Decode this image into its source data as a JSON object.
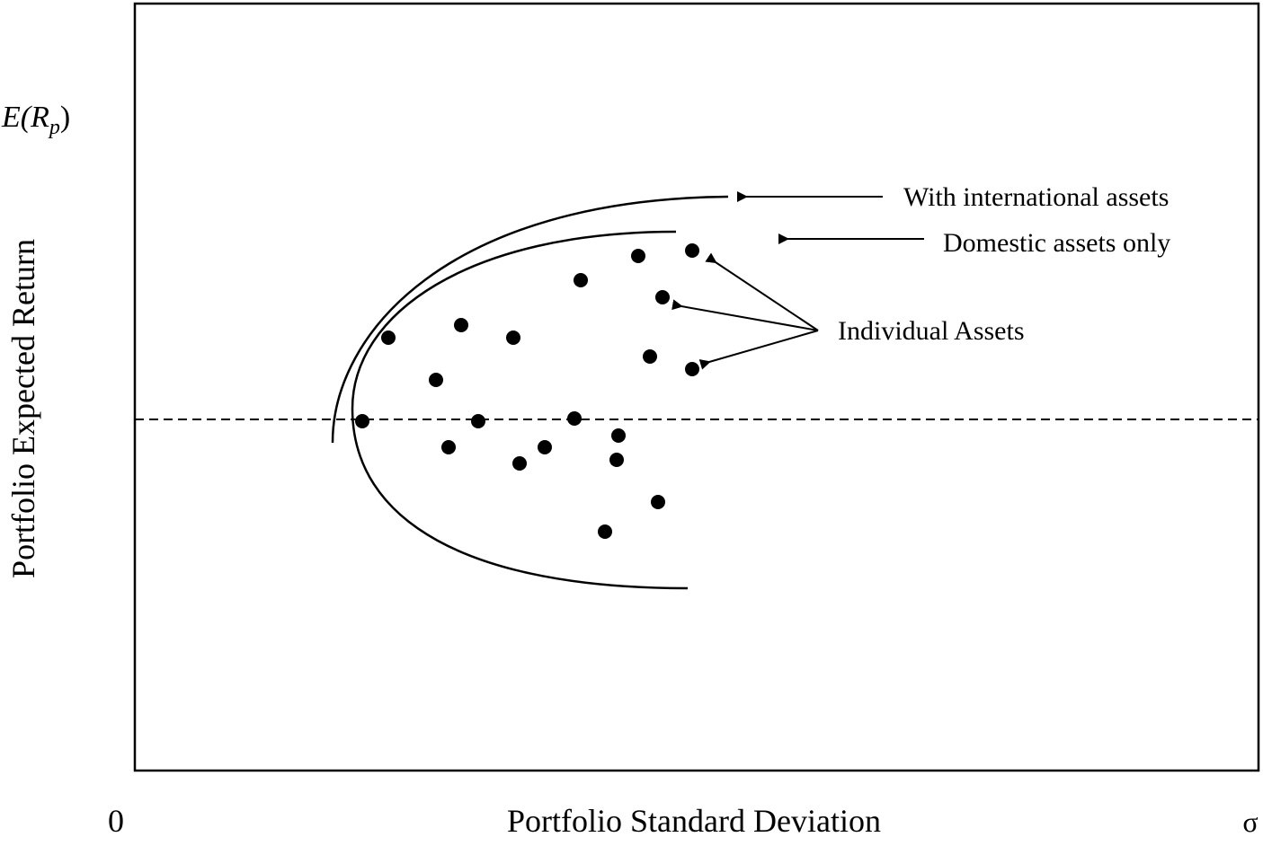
{
  "chart_data": {
    "type": "scatter",
    "title": "",
    "xlabel": "Portfolio Standard Deviation",
    "ylabel": "Portfolio Expected Return",
    "ylabel_symbol": {
      "base": "E(R",
      "subscript": "p",
      "close": ")"
    },
    "x_origin_label": "0",
    "x_end_label": "σ",
    "grid": false,
    "legend": "none",
    "annotations": [
      {
        "id": "intl",
        "text": "With international assets"
      },
      {
        "id": "domestic",
        "text": "Domestic assets only"
      },
      {
        "id": "assets",
        "text": "Individual Assets"
      }
    ],
    "series": [
      {
        "name": "With international assets",
        "kind": "curve",
        "points": [
          [
            6.6,
            1.1
          ],
          [
            6.8,
            1.6
          ],
          [
            7.4,
            2.05
          ],
          [
            8.3,
            2.45
          ],
          [
            9.6,
            2.8
          ],
          [
            11.1,
            3.05
          ],
          [
            13.2,
            3.25
          ],
          [
            15.6,
            3.35
          ]
        ]
      },
      {
        "name": "Domestic assets only",
        "kind": "curve",
        "points": [
          [
            14.4,
            2.85
          ],
          [
            12.5,
            2.78
          ],
          [
            10.5,
            2.55
          ],
          [
            8.8,
            2.15
          ],
          [
            7.8,
            1.6
          ],
          [
            7.3,
            0.95
          ],
          [
            7.4,
            0.35
          ],
          [
            7.9,
            -0.3
          ],
          [
            9.1,
            -1.0
          ],
          [
            11.0,
            -1.55
          ],
          [
            12.8,
            -1.85
          ],
          [
            14.6,
            -2.0
          ]
        ]
      },
      {
        "name": "Individual Assets",
        "kind": "points",
        "points": [
          [
            8.2,
            1.0
          ],
          [
            8.4,
            1.45
          ],
          [
            9.9,
            1.65
          ],
          [
            10.7,
            1.65
          ],
          [
            11.7,
            1.45
          ],
          [
            13.1,
            2.1
          ],
          [
            14.2,
            2.45
          ],
          [
            14.8,
            2.5
          ],
          [
            14.1,
            2.3
          ],
          [
            14.3,
            1.85
          ],
          [
            14.8,
            1.8
          ],
          [
            9.4,
            1.2
          ],
          [
            9.8,
            0.05
          ],
          [
            10.4,
            0.75
          ],
          [
            11.8,
            0.75
          ],
          [
            12.3,
            0.9
          ],
          [
            13.1,
            0.55
          ],
          [
            13.1,
            0.3
          ],
          [
            10.5,
            -0.75
          ],
          [
            11.2,
            -0.9
          ],
          [
            12.6,
            -0.95
          ],
          [
            13.0,
            -1.15
          ],
          [
            14.1,
            -1.05
          ],
          [
            14.6,
            -1.25
          ],
          [
            12.8,
            -1.55
          ]
        ]
      }
    ],
    "reference_line": {
      "y": 0,
      "style": "dashed"
    }
  }
}
